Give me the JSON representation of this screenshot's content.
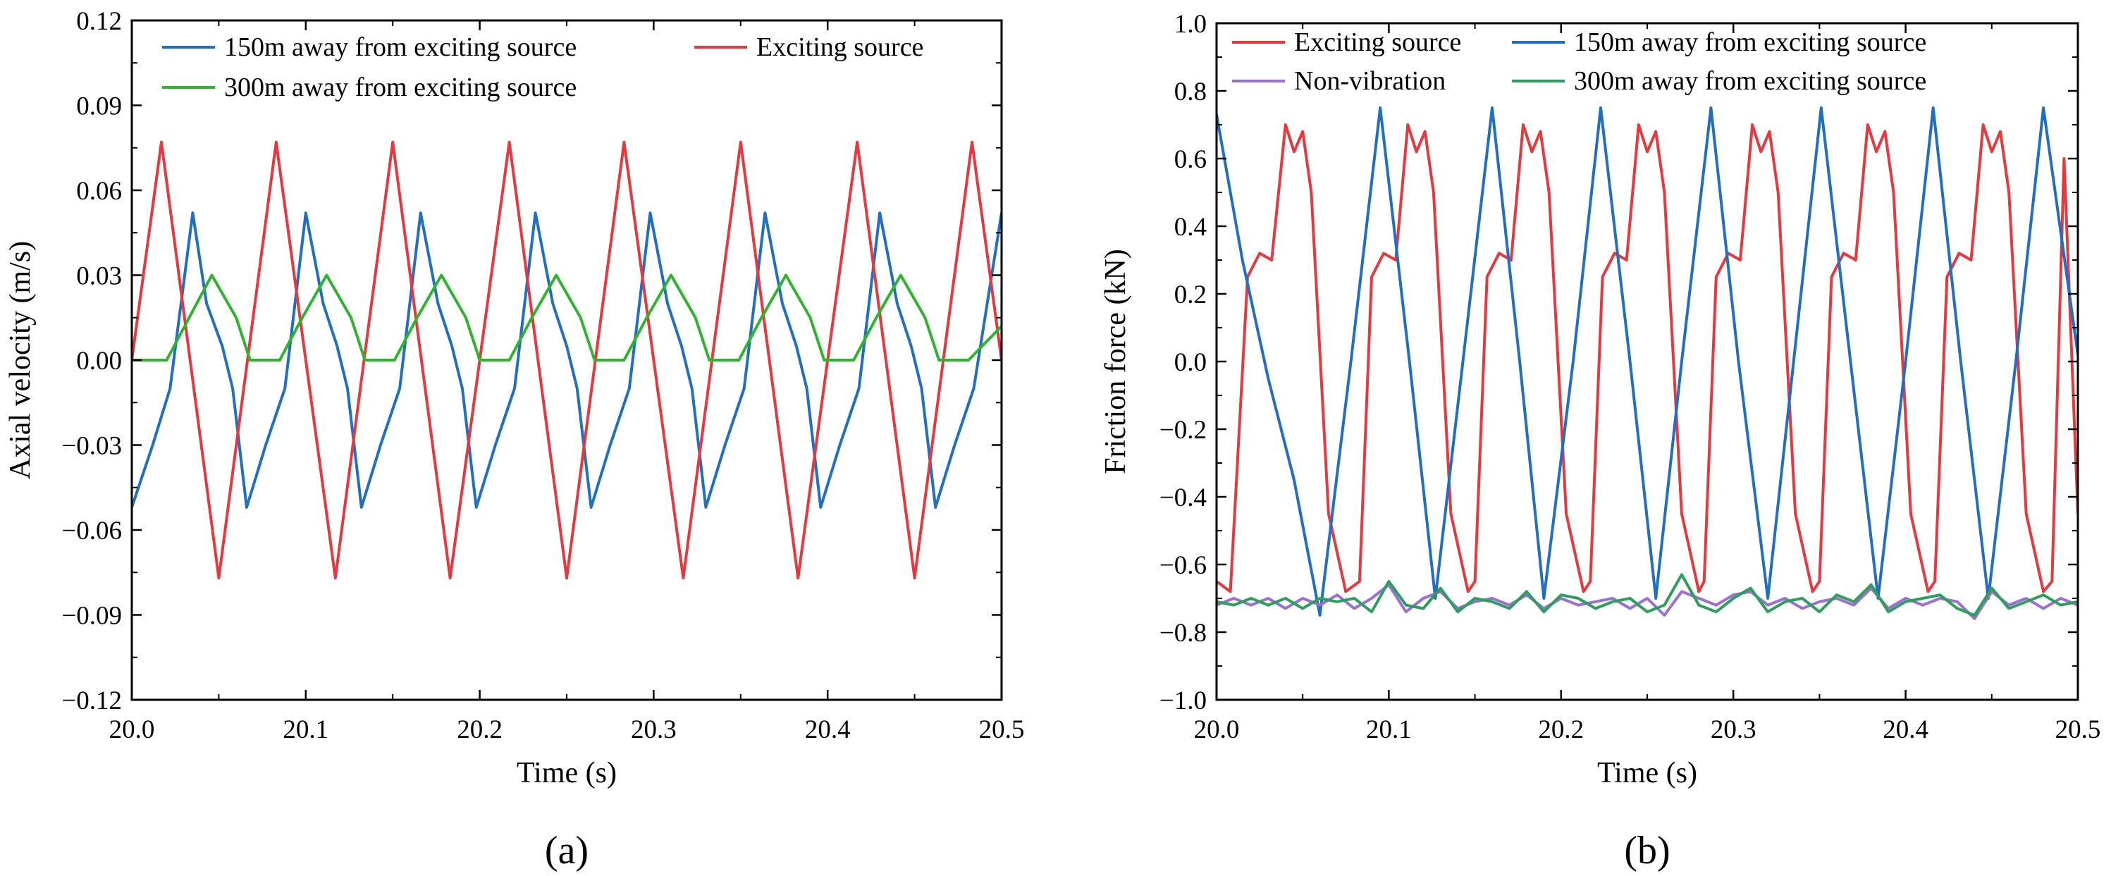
{
  "chart_data": [
    {
      "type": "line",
      "panel_label": "(a)",
      "xlabel": "Time (s)",
      "ylabel": "Axial velocity (m/s)",
      "xlim": [
        20.0,
        20.5
      ],
      "ylim": [
        -0.12,
        0.12
      ],
      "xticks": [
        20.0,
        20.1,
        20.2,
        20.3,
        20.4,
        20.5
      ],
      "xtick_labels": [
        "20.0",
        "20.1",
        "20.2",
        "20.3",
        "20.4",
        "20.5"
      ],
      "yticks": [
        -0.12,
        -0.09,
        -0.06,
        -0.03,
        0.0,
        0.03,
        0.06,
        0.09,
        0.12
      ],
      "ytick_labels": [
        "−0.12",
        "−0.09",
        "−0.06",
        "−0.03",
        "0.00",
        "0.03",
        "0.06",
        "0.09",
        "0.12"
      ],
      "grid": false,
      "legend_position": "top",
      "series": [
        {
          "name": "150m away from exciting source",
          "color": "#1f6fc5",
          "x": [
            20.0,
            20.012,
            20.022,
            20.035,
            20.043,
            20.052,
            20.058,
            20.066,
            20.077,
            20.088,
            20.1,
            20.11,
            20.118,
            20.124,
            20.132,
            20.143,
            20.154,
            20.166,
            20.176,
            20.184,
            20.19,
            20.198,
            20.209,
            20.22,
            20.232,
            20.242,
            20.25,
            20.256,
            20.264,
            20.275,
            20.286,
            20.298,
            20.308,
            20.316,
            20.322,
            20.33,
            20.341,
            20.352,
            20.364,
            20.374,
            20.382,
            20.388,
            20.396,
            20.407,
            20.418,
            20.43,
            20.44,
            20.448,
            20.454,
            20.462,
            20.473,
            20.484,
            20.5
          ],
          "y": [
            -0.052,
            -0.03,
            -0.01,
            0.052,
            0.02,
            0.005,
            -0.01,
            -0.052,
            -0.03,
            -0.01,
            0.052,
            0.02,
            0.005,
            -0.01,
            -0.052,
            -0.03,
            -0.01,
            0.052,
            0.02,
            0.005,
            -0.01,
            -0.052,
            -0.03,
            -0.01,
            0.052,
            0.02,
            0.005,
            -0.01,
            -0.052,
            -0.03,
            -0.01,
            0.052,
            0.02,
            0.005,
            -0.01,
            -0.052,
            -0.03,
            -0.01,
            0.052,
            0.02,
            0.005,
            -0.01,
            -0.052,
            -0.03,
            -0.01,
            0.052,
            0.02,
            0.005,
            -0.01,
            -0.052,
            -0.03,
            -0.01,
            0.052
          ]
        },
        {
          "name": "Exciting source",
          "color": "#e8383d",
          "x": [
            20.0,
            20.017,
            20.05,
            20.083,
            20.117,
            20.15,
            20.183,
            20.217,
            20.25,
            20.283,
            20.317,
            20.35,
            20.383,
            20.417,
            20.45,
            20.483,
            20.5
          ],
          "y": [
            0.0,
            0.077,
            -0.077,
            0.077,
            -0.077,
            0.077,
            -0.077,
            0.077,
            -0.077,
            0.077,
            -0.077,
            0.077,
            -0.077,
            0.077,
            -0.077,
            0.077,
            0.0
          ]
        },
        {
          "name": "300m away from exciting source",
          "color": "#2db52d",
          "x": [
            20.0,
            20.01,
            20.02,
            20.033,
            20.046,
            20.06,
            20.068,
            20.075,
            20.085,
            20.098,
            20.112,
            20.126,
            20.134,
            20.141,
            20.151,
            20.164,
            20.178,
            20.192,
            20.2,
            20.207,
            20.217,
            20.23,
            20.244,
            20.258,
            20.266,
            20.273,
            20.283,
            20.296,
            20.31,
            20.324,
            20.332,
            20.339,
            20.349,
            20.362,
            20.376,
            20.39,
            20.398,
            20.405,
            20.415,
            20.428,
            20.442,
            20.456,
            20.464,
            20.471,
            20.481,
            20.5
          ],
          "y": [
            0.0,
            0.0,
            0.0,
            0.015,
            0.03,
            0.015,
            0.0,
            0.0,
            0.0,
            0.015,
            0.03,
            0.015,
            0.0,
            0.0,
            0.0,
            0.015,
            0.03,
            0.015,
            0.0,
            0.0,
            0.0,
            0.015,
            0.03,
            0.015,
            0.0,
            0.0,
            0.0,
            0.015,
            0.03,
            0.015,
            0.0,
            0.0,
            0.0,
            0.015,
            0.03,
            0.015,
            0.0,
            0.0,
            0.0,
            0.015,
            0.03,
            0.015,
            0.0,
            0.0,
            0.0,
            0.012
          ]
        }
      ]
    },
    {
      "type": "line",
      "panel_label": "(b)",
      "xlabel": "Time (s)",
      "ylabel": "Friction force (kN)",
      "xlim": [
        20.0,
        20.5
      ],
      "ylim": [
        -1.0,
        1.0
      ],
      "xticks": [
        20.0,
        20.1,
        20.2,
        20.3,
        20.4,
        20.5
      ],
      "xtick_labels": [
        "20.0",
        "20.1",
        "20.2",
        "20.3",
        "20.4",
        "20.5"
      ],
      "yticks": [
        -1.0,
        -0.8,
        -0.6,
        -0.4,
        -0.2,
        0.0,
        0.2,
        0.4,
        0.6,
        0.8,
        1.0
      ],
      "ytick_labels": [
        "−1.0",
        "−0.8",
        "−0.6",
        "−0.4",
        "−0.2",
        "0.0",
        "0.2",
        "0.4",
        "0.6",
        "0.8",
        "1.0"
      ],
      "grid": false,
      "legend_position": "top",
      "series": [
        {
          "name": "Exciting source",
          "color": "#e8383d",
          "x": [
            20.0,
            20.008,
            20.018,
            20.025,
            20.032,
            20.04,
            20.045,
            20.05,
            20.055,
            20.065,
            20.075,
            20.083,
            20.09,
            20.097,
            20.104,
            20.111,
            20.116,
            20.121,
            20.126,
            20.136,
            20.146,
            20.15,
            20.157,
            20.164,
            20.171,
            20.178,
            20.183,
            20.188,
            20.193,
            20.203,
            20.213,
            20.217,
            20.224,
            20.231,
            20.238,
            20.245,
            20.25,
            20.255,
            20.26,
            20.27,
            20.28,
            20.283,
            20.29,
            20.297,
            20.304,
            20.311,
            20.316,
            20.321,
            20.326,
            20.336,
            20.346,
            20.35,
            20.357,
            20.364,
            20.371,
            20.378,
            20.383,
            20.388,
            20.393,
            20.403,
            20.413,
            20.417,
            20.424,
            20.431,
            20.438,
            20.445,
            20.45,
            20.455,
            20.46,
            20.47,
            20.48,
            20.485,
            20.492,
            20.5
          ],
          "y": [
            -0.65,
            -0.68,
            0.25,
            0.32,
            0.3,
            0.7,
            0.62,
            0.68,
            0.5,
            -0.45,
            -0.68,
            -0.65,
            0.25,
            0.32,
            0.3,
            0.7,
            0.62,
            0.68,
            0.5,
            -0.45,
            -0.68,
            -0.65,
            0.25,
            0.32,
            0.3,
            0.7,
            0.62,
            0.68,
            0.5,
            -0.45,
            -0.68,
            -0.65,
            0.25,
            0.32,
            0.3,
            0.7,
            0.62,
            0.68,
            0.5,
            -0.45,
            -0.68,
            -0.65,
            0.25,
            0.32,
            0.3,
            0.7,
            0.62,
            0.68,
            0.5,
            -0.45,
            -0.68,
            -0.65,
            0.25,
            0.32,
            0.3,
            0.7,
            0.62,
            0.68,
            0.5,
            -0.45,
            -0.68,
            -0.65,
            0.25,
            0.32,
            0.3,
            0.7,
            0.62,
            0.68,
            0.5,
            -0.45,
            -0.68,
            -0.65,
            0.6,
            -0.45
          ]
        },
        {
          "name": "150m away from exciting source",
          "color": "#1f6fc5",
          "x": [
            20.0,
            20.015,
            20.03,
            20.045,
            20.06,
            20.078,
            20.095,
            20.112,
            20.127,
            20.143,
            20.16,
            20.176,
            20.19,
            20.207,
            20.223,
            20.24,
            20.255,
            20.27,
            20.287,
            20.303,
            20.32,
            20.335,
            20.351,
            20.368,
            20.384,
            20.4,
            20.416,
            20.432,
            20.448,
            20.464,
            20.48,
            20.5
          ],
          "y": [
            0.73,
            0.3,
            -0.05,
            -0.35,
            -0.75,
            0.0,
            0.75,
            0.0,
            -0.7,
            0.0,
            0.75,
            0.0,
            -0.7,
            0.0,
            0.75,
            0.0,
            -0.7,
            0.0,
            0.75,
            0.0,
            -0.7,
            0.0,
            0.75,
            0.0,
            -0.7,
            0.0,
            0.75,
            0.0,
            -0.7,
            0.0,
            0.75,
            0.02
          ]
        },
        {
          "name": "Non-vibration",
          "color": "#9b6fd4",
          "x": [
            20.0,
            20.01,
            20.02,
            20.03,
            20.04,
            20.05,
            20.06,
            20.07,
            20.08,
            20.09,
            20.1,
            20.11,
            20.12,
            20.13,
            20.14,
            20.15,
            20.16,
            20.17,
            20.18,
            20.19,
            20.2,
            20.21,
            20.22,
            20.23,
            20.24,
            20.25,
            20.26,
            20.27,
            20.28,
            20.29,
            20.3,
            20.31,
            20.32,
            20.33,
            20.34,
            20.35,
            20.36,
            20.37,
            20.38,
            20.39,
            20.4,
            20.41,
            20.42,
            20.43,
            20.44,
            20.45,
            20.46,
            20.47,
            20.48,
            20.49,
            20.5
          ],
          "y": [
            -0.72,
            -0.7,
            -0.72,
            -0.7,
            -0.73,
            -0.7,
            -0.72,
            -0.69,
            -0.73,
            -0.7,
            -0.66,
            -0.74,
            -0.7,
            -0.68,
            -0.73,
            -0.71,
            -0.7,
            -0.72,
            -0.69,
            -0.73,
            -0.7,
            -0.72,
            -0.71,
            -0.7,
            -0.73,
            -0.7,
            -0.75,
            -0.68,
            -0.7,
            -0.72,
            -0.69,
            -0.68,
            -0.72,
            -0.7,
            -0.73,
            -0.71,
            -0.7,
            -0.72,
            -0.67,
            -0.73,
            -0.7,
            -0.72,
            -0.7,
            -0.71,
            -0.76,
            -0.68,
            -0.72,
            -0.7,
            -0.73,
            -0.7,
            -0.72
          ]
        },
        {
          "name": "300m away from exciting source",
          "color": "#2ba05a",
          "x": [
            20.0,
            20.01,
            20.02,
            20.03,
            20.04,
            20.05,
            20.06,
            20.07,
            20.08,
            20.09,
            20.1,
            20.11,
            20.12,
            20.13,
            20.14,
            20.15,
            20.16,
            20.17,
            20.18,
            20.19,
            20.2,
            20.21,
            20.22,
            20.23,
            20.24,
            20.25,
            20.26,
            20.27,
            20.28,
            20.29,
            20.3,
            20.31,
            20.32,
            20.33,
            20.34,
            20.35,
            20.36,
            20.37,
            20.38,
            20.39,
            20.4,
            20.41,
            20.42,
            20.43,
            20.44,
            20.45,
            20.46,
            20.47,
            20.48,
            20.49,
            20.5
          ],
          "y": [
            -0.71,
            -0.72,
            -0.7,
            -0.72,
            -0.7,
            -0.73,
            -0.7,
            -0.71,
            -0.7,
            -0.74,
            -0.65,
            -0.72,
            -0.73,
            -0.67,
            -0.74,
            -0.7,
            -0.71,
            -0.73,
            -0.68,
            -0.74,
            -0.69,
            -0.7,
            -0.73,
            -0.71,
            -0.7,
            -0.74,
            -0.72,
            -0.63,
            -0.72,
            -0.74,
            -0.7,
            -0.67,
            -0.74,
            -0.71,
            -0.7,
            -0.74,
            -0.69,
            -0.71,
            -0.66,
            -0.74,
            -0.71,
            -0.7,
            -0.69,
            -0.73,
            -0.75,
            -0.67,
            -0.73,
            -0.71,
            -0.69,
            -0.72,
            -0.71
          ]
        }
      ]
    }
  ]
}
